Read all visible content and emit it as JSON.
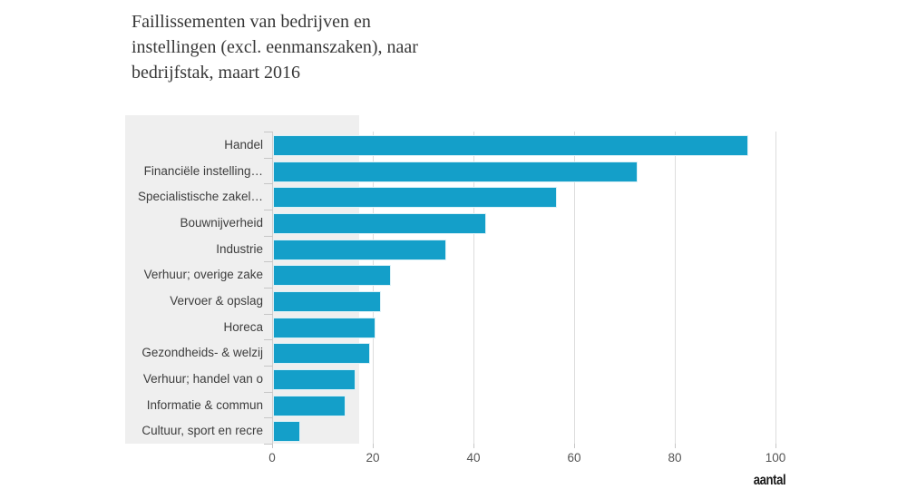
{
  "page": {
    "background": "#ffffff"
  },
  "chart_data": {
    "type": "bar",
    "orientation": "horizontal",
    "title": "Faillissementen van bedrijven en instellingen (excl. eenmanszaken), naar bedrijfstak, maart 2016",
    "title_lines": [
      "Faillissementen van bedrijven en",
      "instellingen (excl. eenmanszaken), naar",
      "bedrijfstak, maart 2016"
    ],
    "categories": [
      "Handel",
      "Financiële instelling…",
      "Specialistische zakel…",
      "Bouwnijverheid",
      "Industrie",
      "Verhuur; overige zake",
      "Vervoer & opslag",
      "Horeca",
      "Gezondheids- & welzij",
      "Verhuur; handel van o",
      "Informatie & commun",
      "Cultuur, sport en recre"
    ],
    "values": [
      94,
      72,
      56,
      42,
      34,
      23,
      21,
      20,
      19,
      16,
      14,
      5
    ],
    "xlabel": "aantal",
    "x_ticks": [
      0,
      20,
      40,
      60,
      80,
      100
    ],
    "xlim": [
      0,
      100
    ],
    "grid": true,
    "legend": false,
    "colors": {
      "bar": "#149fc9",
      "panel": "#efefef",
      "gridline": "#dddddd",
      "tick": "#c6c6c6",
      "axis_line": "#cfcfcf",
      "label_text": "#3d3d3d",
      "axis_text": "#555555",
      "title_text": "#383838",
      "unit_text": "#1a1a1a"
    }
  }
}
